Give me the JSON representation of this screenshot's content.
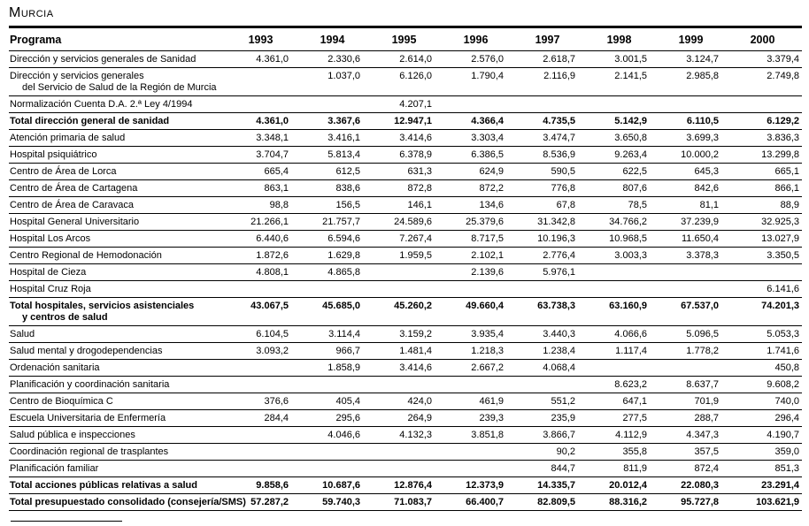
{
  "page": {
    "title": "Murcia"
  },
  "table": {
    "columns": [
      "Programa",
      "1993",
      "1994",
      "1995",
      "1996",
      "1997",
      "1998",
      "1999",
      "2000"
    ],
    "rows": [
      {
        "label": "Dirección y servicios generales de Sanidad",
        "style": "normal",
        "values": [
          "4.361,0",
          "2.330,6",
          "2.614,0",
          "2.576,0",
          "2.618,7",
          "3.001,5",
          "3.124,7",
          "3.379,4"
        ]
      },
      {
        "label": "Dirección y servicios generales",
        "label2": "del Servicio de Salud de la Región de Murcia",
        "style": "normal",
        "values": [
          "",
          "1.037,0",
          "6.126,0",
          "1.790,4",
          "2.116,9",
          "2.141,5",
          "2.985,8",
          "2.749,8"
        ]
      },
      {
        "label": "Normalización Cuenta D.A. 2.ª Ley 4/1994",
        "style": "normal",
        "values": [
          "",
          "",
          "4.207,1",
          "",
          "",
          "",
          "",
          ""
        ]
      },
      {
        "label": "Total dirección general de sanidad",
        "style": "total",
        "values": [
          "4.361,0",
          "3.367,6",
          "12.947,1",
          "4.366,4",
          "4.735,5",
          "5.142,9",
          "6.110,5",
          "6.129,2"
        ]
      },
      {
        "label": "Atención primaria de salud",
        "style": "normal",
        "values": [
          "3.348,1",
          "3.416,1",
          "3.414,6",
          "3.303,4",
          "3.474,7",
          "3.650,8",
          "3.699,3",
          "3.836,3"
        ]
      },
      {
        "label": "Hospital psiquiátrico",
        "style": "normal",
        "values": [
          "3.704,7",
          "5.813,4",
          "6.378,9",
          "6.386,5",
          "8.536,9",
          "9.263,4",
          "10.000,2",
          "13.299,8"
        ]
      },
      {
        "label": "Centro de Área de Lorca",
        "style": "normal",
        "values": [
          "665,4",
          "612,5",
          "631,3",
          "624,9",
          "590,5",
          "622,5",
          "645,3",
          "665,1"
        ]
      },
      {
        "label": "Centro de Área de Cartagena",
        "style": "normal",
        "values": [
          "863,1",
          "838,6",
          "872,8",
          "872,2",
          "776,8",
          "807,6",
          "842,6",
          "866,1"
        ]
      },
      {
        "label": "Centro de Área de Caravaca",
        "style": "normal",
        "values": [
          "98,8",
          "156,5",
          "146,1",
          "134,6",
          "67,8",
          "78,5",
          "81,1",
          "88,9"
        ]
      },
      {
        "label": "Hospital General Universitario",
        "style": "normal",
        "values": [
          "21.266,1",
          "21.757,7",
          "24.589,6",
          "25.379,6",
          "31.342,8",
          "34.766,2",
          "37.239,9",
          "32.925,3"
        ]
      },
      {
        "label": "Hospital Los Arcos",
        "style": "normal",
        "values": [
          "6.440,6",
          "6.594,6",
          "7.267,4",
          "8.717,5",
          "10.196,3",
          "10.968,5",
          "11.650,4",
          "13.027,9"
        ]
      },
      {
        "label": "Centro Regional de Hemodonación",
        "style": "normal",
        "values": [
          "1.872,6",
          "1.629,8",
          "1.959,5",
          "2.102,1",
          "2.776,4",
          "3.003,3",
          "3.378,3",
          "3.350,5"
        ]
      },
      {
        "label": "Hospital de Cieza",
        "style": "normal",
        "values": [
          "4.808,1",
          "4.865,8",
          "",
          "2.139,6",
          "5.976,1",
          "",
          "",
          ""
        ]
      },
      {
        "label": "Hospital Cruz Roja",
        "style": "normal",
        "values": [
          "",
          "",
          "",
          "",
          "",
          "",
          "",
          "6.141,6"
        ]
      },
      {
        "label": "Total hospitales, servicios asistenciales",
        "label2": "y centros de salud",
        "style": "total",
        "values": [
          "43.067,5",
          "45.685,0",
          "45.260,2",
          "49.660,4",
          "63.738,3",
          "63.160,9",
          "67.537,0",
          "74.201,3"
        ]
      },
      {
        "label": "Salud",
        "style": "normal",
        "values": [
          "6.104,5",
          "3.114,4",
          "3.159,2",
          "3.935,4",
          "3.440,3",
          "4.066,6",
          "5.096,5",
          "5.053,3"
        ]
      },
      {
        "label": "Salud mental y drogodependencias",
        "style": "normal",
        "values": [
          "3.093,2",
          "966,7",
          "1.481,4",
          "1.218,3",
          "1.238,4",
          "1.117,4",
          "1.778,2",
          "1.741,6"
        ]
      },
      {
        "label": "Ordenación sanitaria",
        "style": "normal",
        "values": [
          "",
          "1.858,9",
          "3.414,6",
          "2.667,2",
          "4.068,4",
          "",
          "",
          "450,8"
        ]
      },
      {
        "label": "Planificación y coordinación sanitaria",
        "style": "normal",
        "values": [
          "",
          "",
          "",
          "",
          "",
          "8.623,2",
          "8.637,7",
          "9.608,2"
        ]
      },
      {
        "label": "Centro de Bioquímica C",
        "style": "normal",
        "values": [
          "376,6",
          "405,4",
          "424,0",
          "461,9",
          "551,2",
          "647,1",
          "701,9",
          "740,0"
        ]
      },
      {
        "label": "Escuela Universitaria de Enfermería",
        "style": "normal",
        "values": [
          "284,4",
          "295,6",
          "264,9",
          "239,3",
          "235,9",
          "277,5",
          "288,7",
          "296,4"
        ]
      },
      {
        "label": "Salud pública e inspecciones",
        "style": "normal",
        "values": [
          "",
          "4.046,6",
          "4.132,3",
          "3.851,8",
          "3.866,7",
          "4.112,9",
          "4.347,3",
          "4.190,7"
        ]
      },
      {
        "label": "Coordinación regional de trasplantes",
        "style": "normal",
        "values": [
          "",
          "",
          "",
          "",
          "90,2",
          "355,8",
          "357,5",
          "359,0"
        ]
      },
      {
        "label": "Planificación familiar",
        "style": "normal",
        "values": [
          "",
          "",
          "",
          "",
          "844,7",
          "811,9",
          "872,4",
          "851,3"
        ]
      },
      {
        "label": "Total acciones públicas relativas a salud",
        "style": "total",
        "values": [
          "9.858,6",
          "10.687,6",
          "12.876,4",
          "12.373,9",
          "14.335,7",
          "20.012,4",
          "22.080,3",
          "23.291,4"
        ]
      },
      {
        "label": "Total presupuestado consolidado (consejería/SMS)",
        "style": "total",
        "values": [
          "57.287,2",
          "59.740,3",
          "71.083,7",
          "66.400,7",
          "82.809,5",
          "88.316,2",
          "95.727,8",
          "103.621,9"
        ]
      }
    ]
  }
}
